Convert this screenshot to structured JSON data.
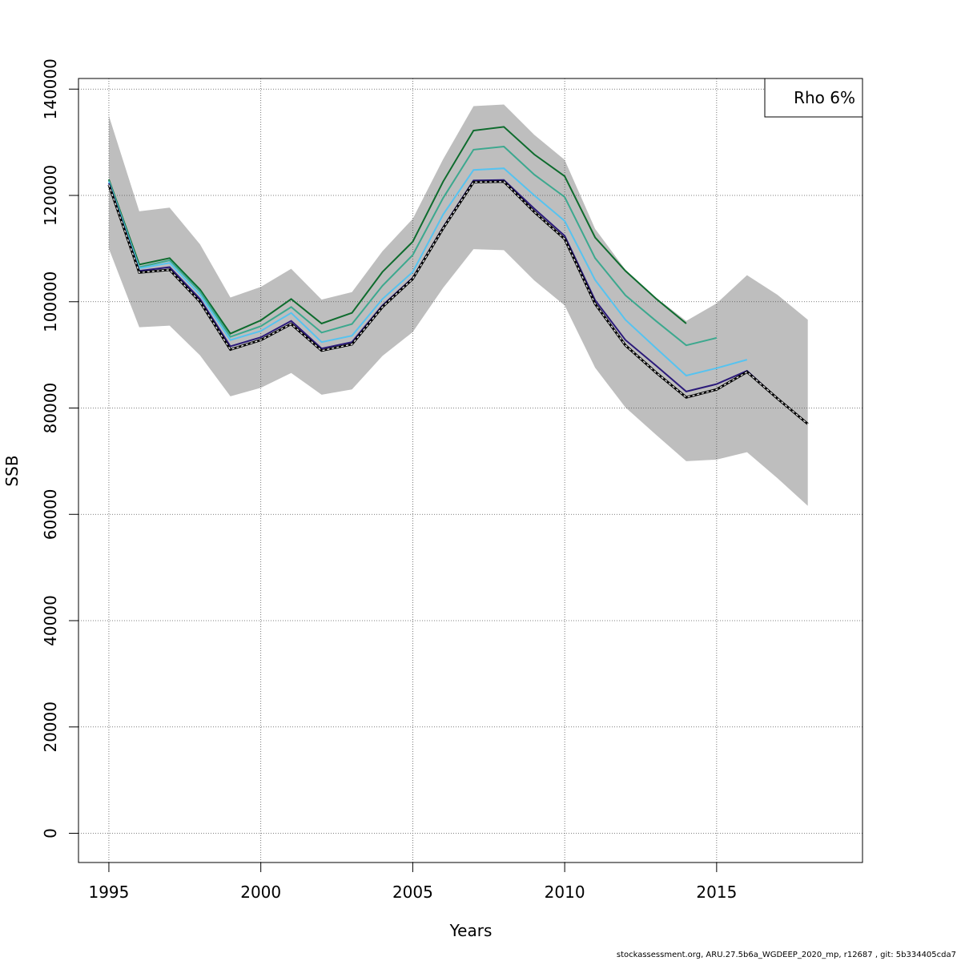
{
  "chart_data": {
    "type": "line",
    "title": "",
    "xlabel": "Years",
    "ylabel": "SSB",
    "xlim": [
      1994,
      2019.8
    ],
    "ylim": [
      -5500,
      142000
    ],
    "x_ticks": [
      1995,
      2000,
      2005,
      2010,
      2015
    ],
    "y_ticks": [
      0,
      20000,
      40000,
      60000,
      80000,
      100000,
      120000,
      140000
    ],
    "grid": true,
    "legend": {
      "position": "top-right",
      "text": "Rho 6%"
    },
    "colors": {
      "band": "#bebebe",
      "base": "#000000",
      "peels": [
        "#2b1a7a",
        "#56c3f0",
        "#3ca88e",
        "#0d6b2d"
      ]
    },
    "band": {
      "x": [
        1995,
        1996,
        1997,
        1998,
        1999,
        2000,
        2001,
        2002,
        2003,
        2004,
        2005,
        2006,
        2007,
        2008,
        2009,
        2010,
        2011,
        2012,
        2013,
        2014,
        2015,
        2016,
        2017,
        2018
      ],
      "upper": [
        135000,
        117000,
        117700,
        110800,
        100800,
        102800,
        106200,
        100400,
        101800,
        109500,
        115600,
        126800,
        136800,
        137100,
        131400,
        126700,
        113700,
        106000,
        100800,
        96400,
        99700,
        105000,
        101300,
        96600
      ],
      "lower": [
        110000,
        95200,
        95500,
        89900,
        82200,
        83800,
        86600,
        82500,
        83500,
        89800,
        94300,
        102600,
        109900,
        109700,
        104000,
        99300,
        87600,
        80100,
        75000,
        70000,
        70300,
        71700,
        66800,
        61600
      ]
    },
    "series": [
      {
        "x": [
          1995,
          1996,
          1997,
          1998,
          1999,
          2000,
          2001,
          2002,
          2003,
          2004,
          2005,
          2006,
          2007,
          2008,
          2009,
          2010,
          2011,
          2012,
          2013,
          2014,
          2015,
          2016,
          2017,
          2018
        ],
        "values": [
          122000,
          105500,
          106000,
          100000,
          91000,
          92800,
          95800,
          90800,
          92000,
          99000,
          104300,
          113800,
          122500,
          122600,
          116900,
          111800,
          99600,
          91800,
          86700,
          82000,
          83500,
          86800,
          81800,
          77000
        ],
        "style": "dashed-base"
      },
      {
        "x": [
          1995,
          1996,
          1997,
          1998,
          1999,
          2000,
          2001,
          2002,
          2003,
          2004,
          2005,
          2006,
          2007,
          2008,
          2009,
          2010,
          2011,
          2012,
          2013,
          2014,
          2015,
          2016,
          2017
        ],
        "values": [
          122300,
          105800,
          106500,
          100500,
          91600,
          93300,
          96400,
          91200,
          92400,
          99300,
          104500,
          114000,
          122800,
          122900,
          117500,
          112400,
          100300,
          92800,
          88000,
          83100,
          84500,
          87000,
          81800
        ],
        "color_index": 0
      },
      {
        "x": [
          1995,
          1996,
          1997,
          1998,
          1999,
          2000,
          2001,
          2002,
          2003,
          2004,
          2005,
          2006,
          2007,
          2008,
          2009,
          2010,
          2011,
          2012,
          2013,
          2014,
          2015,
          2016
        ],
        "values": [
          122600,
          106300,
          107300,
          101300,
          92800,
          94500,
          97900,
          92400,
          93600,
          100500,
          105600,
          116400,
          124800,
          125100,
          120000,
          115200,
          104100,
          96600,
          91300,
          86100,
          87500,
          89100
        ],
        "color_index": 1
      },
      {
        "x": [
          1995,
          1996,
          1997,
          1998,
          1999,
          2000,
          2001,
          2002,
          2003,
          2004,
          2005,
          2006,
          2007,
          2008,
          2009,
          2010,
          2011,
          2012,
          2013,
          2014,
          2015
        ],
        "values": [
          122800,
          106500,
          107800,
          101900,
          93400,
          95400,
          99000,
          94200,
          95800,
          103000,
          108800,
          119500,
          128600,
          129200,
          123900,
          119700,
          108200,
          101200,
          96400,
          91800,
          93200
        ],
        "color_index": 2
      },
      {
        "x": [
          1995,
          1996,
          1997,
          1998,
          1999,
          2000,
          2001,
          2002,
          2003,
          2004,
          2005,
          2006,
          2007,
          2008,
          2009,
          2010,
          2011,
          2012,
          2013,
          2014
        ],
        "values": [
          123000,
          107000,
          108200,
          102300,
          94000,
          96500,
          100500,
          95900,
          97900,
          105600,
          111300,
          122600,
          132200,
          132900,
          127700,
          123600,
          112100,
          105800,
          100600,
          95900
        ],
        "color_index": 3
      }
    ]
  },
  "footer": "stockassessment.org, ARU.27.5b6a_WGDEEP_2020_mp, r12687 , git: 5b334405cda7"
}
